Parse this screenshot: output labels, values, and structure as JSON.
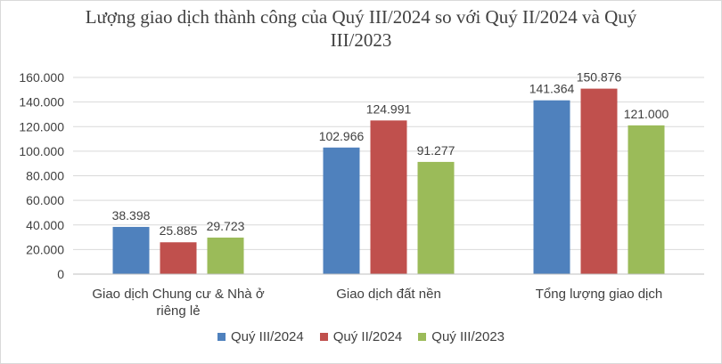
{
  "chart_data": {
    "type": "bar",
    "title": "Lượng giao dịch thành công của Quý III/2024  so với Quý II/2024 và Quý III/2023",
    "categories": [
      [
        "Giao dịch Chung cư & Nhà ở",
        "riêng lẻ"
      ],
      [
        "Giao dịch đất nền"
      ],
      [
        "Tổng lượng giao dịch"
      ]
    ],
    "series": [
      {
        "name": "Quý III/2024",
        "color": "#4f81bd",
        "values": [
          38398,
          102966,
          141364
        ],
        "labels": [
          "38.398",
          "102.966",
          "141.364"
        ]
      },
      {
        "name": "Quý II/2024",
        "color": "#c0504d",
        "values": [
          25885,
          124991,
          150876
        ],
        "labels": [
          "25.885",
          "124.991",
          "150.876"
        ]
      },
      {
        "name": "Quý III/2023",
        "color": "#9bbb59",
        "values": [
          29723,
          91277,
          121000
        ],
        "labels": [
          "29.723",
          "91.277",
          "121.000"
        ]
      }
    ],
    "ylim": [
      0,
      160000
    ],
    "yticks": [
      0,
      20000,
      40000,
      60000,
      80000,
      100000,
      120000,
      140000,
      160000
    ],
    "ytick_labels": [
      "0",
      "20.000",
      "40.000",
      "60.000",
      "80.000",
      "100.000",
      "120.000",
      "140.000",
      "160.000"
    ],
    "grid": true,
    "legend_position": "bottom"
  }
}
